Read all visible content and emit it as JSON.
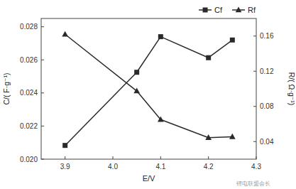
{
  "chart_data": {
    "type": "line",
    "x_label": "E/V",
    "y_label": "C/( F·g⁻¹)",
    "y2_label": "R/( Ω·g⁻¹)",
    "x": [
      3.9,
      4.05,
      4.1,
      4.2,
      4.25
    ],
    "series": [
      {
        "name": "Cf",
        "color": "#2a2a2a",
        "marker": "square",
        "values": [
          0.02083,
          0.02525,
          0.0274,
          0.02613,
          0.0272
        ]
      },
      {
        "name": "Rf",
        "color": "#2a2a2a",
        "marker": "triangle",
        "axis": "y2",
        "values": [
          0.162,
          0.0975,
          0.065,
          0.0445,
          0.0455
        ]
      }
    ],
    "xlim": [
      3.85,
      4.3
    ],
    "xticks": [
      3.9,
      {
        "value": 4.0,
        "label": "4.0"
      },
      4.1,
      4.2,
      4.3
    ],
    "ylim": [
      0.02,
      0.0285
    ],
    "yticks": [
      {
        "value": 0.02,
        "label": "0.020"
      },
      0.022,
      0.024,
      0.026,
      0.028
    ],
    "y2lim": [
      0.02,
      0.18
    ],
    "y2ticks": [
      0.04,
      0.08,
      0.12,
      0.16
    ],
    "grid": false,
    "legend": "upper right",
    "annotations": [
      "锂电联盟会长"
    ]
  }
}
